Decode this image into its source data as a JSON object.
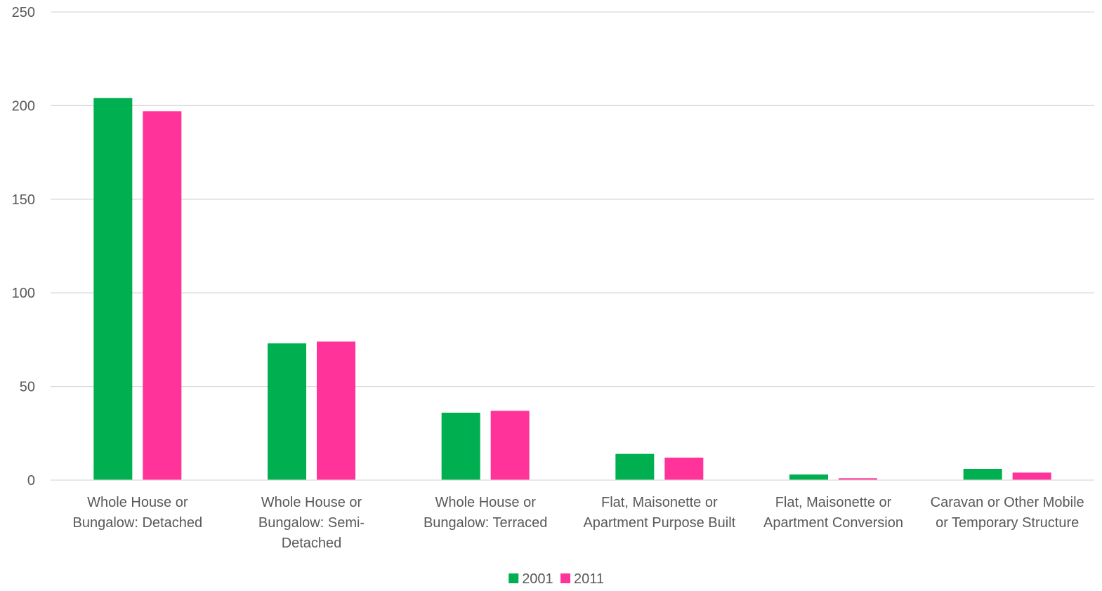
{
  "chart_data": {
    "type": "bar",
    "title": "",
    "xlabel": "",
    "ylabel": "",
    "ylim": [
      0,
      250
    ],
    "yticks": [
      0,
      50,
      100,
      150,
      200,
      250
    ],
    "grid": true,
    "legend_position": "bottom",
    "categories": [
      [
        "Whole House or",
        "Bungalow: Detached"
      ],
      [
        "Whole House or",
        "Bungalow: Semi-",
        "Detached"
      ],
      [
        "Whole House or",
        "Bungalow: Terraced"
      ],
      [
        "Flat, Maisonette or",
        "Apartment Purpose Built"
      ],
      [
        "Flat, Maisonette or",
        "Apartment Conversion"
      ],
      [
        "Caravan or Other Mobile",
        "or Temporary Structure"
      ]
    ],
    "series": [
      {
        "name": "2001",
        "color": "#00B050",
        "values": [
          204,
          73,
          36,
          14,
          3,
          6
        ]
      },
      {
        "name": "2011",
        "color": "#FF3399",
        "values": [
          197,
          74,
          37,
          12,
          1,
          4
        ]
      }
    ]
  }
}
